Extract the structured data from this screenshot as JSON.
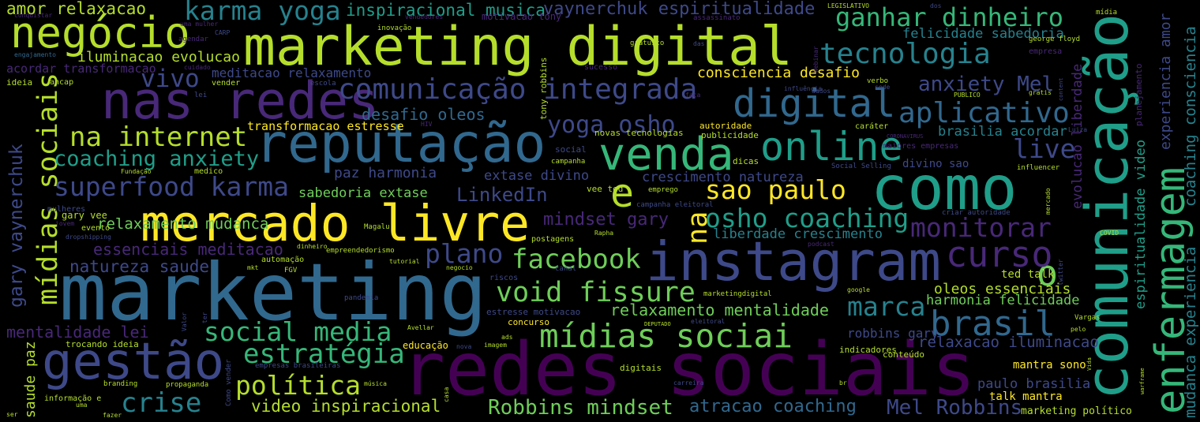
{
  "words": [
    "marketing",
    "redes sociais",
    "marketing digital",
    "comunicação",
    "reputação",
    "mercado livre",
    "instagram",
    "como",
    "gestão",
    "nas redes",
    "enfermagem",
    "mídias sociais",
    "venda",
    "digital",
    "online",
    "mídias sociai",
    "negócio",
    "e",
    "na",
    "o",
    "brasil",
    "curso",
    "marca",
    "live",
    "facebook",
    "void fissure",
    "social media",
    "estratégia",
    "política",
    "crise",
    "plano",
    "LinkedIn",
    "sao paulo",
    "osho coaching",
    "monitorar",
    "tecnologia",
    "ganhar dinheiro",
    "aplicativo",
    "anxiety Mel",
    "comunicação integrada",
    "yoga osho",
    "karma yoga",
    "inspiracional musica",
    "vaynerchuk espiritualidade",
    "iluminacao evolucao",
    "vivo",
    "na internet",
    "coaching anxiety",
    "superfood karma",
    "relaxamento mudanca",
    "essenciais meditacao",
    "natureza saude",
    "mentalidade lei",
    "gary vaynerchuk",
    "saude paz",
    "amor relaxacao",
    "acordar transformacao",
    "meditacao relaxamento",
    "consciencia desafio",
    "desafio oleos",
    "transformacao estresse",
    "paz harmonia",
    "extase divino",
    "sabedoria extase",
    "crescimento natureza",
    "mindset gary",
    "liberdade crescimento",
    "relaxamento mentalidade",
    "oleos essenciais",
    "harmonia felicidade",
    "ted talk",
    "robbins gary",
    "relaxacao iluminacao",
    "indicadores",
    "mantra sono",
    "paulo brasilia",
    "talk mantra",
    "Mel Robbins",
    "marketing político",
    "atracao coaching",
    "Robbins mindset",
    "video inspiracional",
    "felicidade sabedoria",
    "brasilia acordar",
    "evolucao liberdade",
    "espiritualidade video",
    "experiencia amor",
    "coaching consciencia",
    "mudanca experiencia",
    "planejamento",
    "conquistar",
    "uma mulher",
    "CARP",
    "agendar",
    "engajamento",
    "ideia",
    "ancap",
    "cuidado",
    "lei",
    "vender",
    "escola",
    "inovação",
    "vendedores",
    "motivacao tony",
    "gratuito",
    "assassinato",
    "das",
    "LEGISLATIVO",
    "dos",
    "mídia",
    "Webinar",
    "tony robbins",
    "sucesso",
    "faça",
    "influência",
    "dados",
    "sede",
    "verbo",
    "PUBLICO",
    "gratis",
    "content",
    "george floyd",
    "empresa",
    "HIV",
    "caráter",
    "CORONAVIRUS",
    "maiores empresas",
    "Luiza",
    "autoridade",
    "publicidade",
    "novas tecnologias",
    "social",
    "campanha",
    "Fundação",
    "medico",
    "dicas",
    "vee ted",
    "emprego",
    "Social Selling",
    "influencer",
    "divino sao",
    "campanha eleitoral",
    "criar autoridade",
    "mercado",
    "mulheres",
    "jovem",
    "gary vee",
    "evento",
    "dropshipping",
    "Magalu",
    "postagens",
    "Rapha",
    "COVID",
    "podcast",
    "dinheiro",
    "empreendedorismo",
    "automação",
    "tutorial",
    "mkt",
    "FGV",
    "negocio",
    "canal",
    "twitter",
    "riscos",
    "google",
    "marketingdigital",
    "pandemia",
    "ter",
    "Valor",
    "estresse motivacao",
    "concurso",
    "DEPUTADO",
    "eleitoral",
    "Vargas",
    "pelo",
    "Avellar",
    "ads",
    "imagem",
    "trocando ideia",
    "educação",
    "nova",
    "conteúdo",
    "Como vender",
    "empresas brasileiras",
    "digitais",
    "Vida",
    "branding",
    "propaganda",
    "música",
    "carreira",
    "br",
    "casa",
    "informação e",
    "fazer",
    "uma",
    "warframe",
    "ser"
  ]
}
